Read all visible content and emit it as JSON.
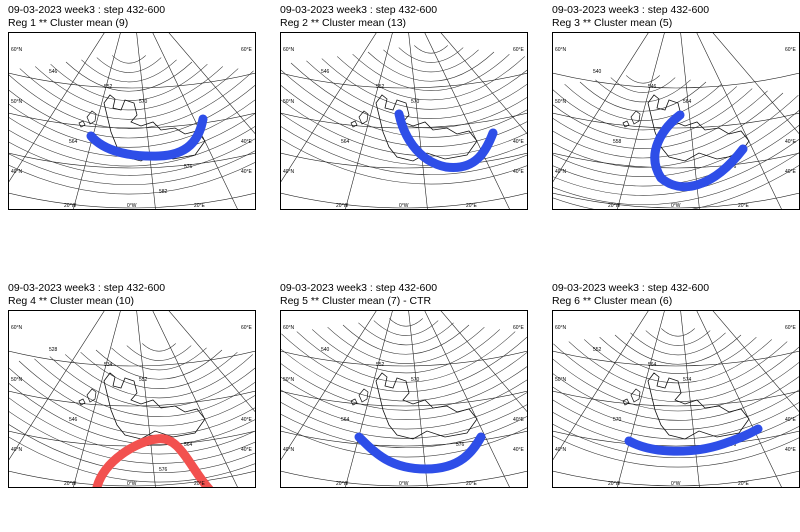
{
  "panels": [
    {
      "line1": "09-03-2023 week3 : step 432-600",
      "line2": "Reg 1 **  Cluster mean  (9)",
      "jet_color": "#2e4ee8",
      "contour_labels": [
        "546",
        "552",
        "564",
        "570",
        "576",
        "582"
      ]
    },
    {
      "line1": "09-03-2023 week3 : step 432-600",
      "line2": "Reg 2 **  Cluster mean  (13)",
      "jet_color": "#2e4ee8",
      "contour_labels": [
        "546",
        "552",
        "564",
        "570",
        "576"
      ]
    },
    {
      "line1": "09-03-2023 week3 : step 432-600",
      "line2": "Reg 3 **  Cluster mean  (5)",
      "jet_color": "#2e4ee8",
      "contour_labels": [
        "540",
        "546",
        "558",
        "564",
        "576"
      ]
    },
    {
      "line1": "09-03-2023 week3 : step 432-600",
      "line2": "Reg 4 **  Cluster mean  (10)",
      "jet_color": "#f2514f",
      "contour_labels": [
        "528",
        "534",
        "546",
        "552",
        "564",
        "576"
      ]
    },
    {
      "line1": "09-03-2023 week3 : step 432-600",
      "line2": "Reg 5 **  Cluster mean  (7)  -  CTR",
      "jet_color": "#2e4ee8",
      "contour_labels": [
        "540",
        "552",
        "564",
        "570",
        "576"
      ]
    },
    {
      "line1": "09-03-2023 week3 : step 432-600",
      "line2": "Reg 6 **  Cluster mean  (6)",
      "jet_color": "#2e4ee8",
      "contour_labels": [
        "552",
        "564",
        "570",
        "574",
        "576"
      ]
    }
  ],
  "lat_labels_left": [
    "60°N",
    "50°N",
    "40°N"
  ],
  "lat_labels_right": [
    "60°E",
    "40°E",
    "40°E"
  ],
  "lon_labels_bottom": [
    "20°W",
    "0°W",
    "20°E"
  ]
}
